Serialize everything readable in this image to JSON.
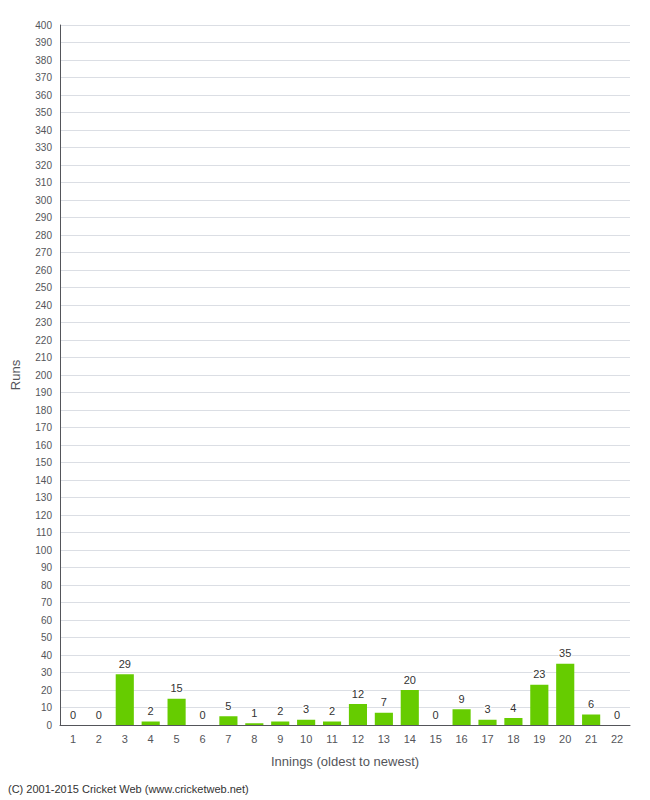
{
  "chart_data": {
    "type": "bar",
    "xlabel": "Innings (oldest to newest)",
    "ylabel": "Runs",
    "categories": [
      "1",
      "2",
      "3",
      "4",
      "5",
      "6",
      "7",
      "8",
      "9",
      "10",
      "11",
      "12",
      "13",
      "14",
      "15",
      "16",
      "17",
      "18",
      "19",
      "20",
      "21",
      "22"
    ],
    "values": [
      0,
      0,
      29,
      2,
      15,
      0,
      5,
      1,
      2,
      3,
      2,
      12,
      7,
      20,
      0,
      9,
      3,
      4,
      23,
      35,
      6,
      0
    ],
    "color": "#66cc00",
    "ylim": [
      0,
      400
    ],
    "yticks": [
      0,
      10,
      20,
      30,
      40,
      50,
      60,
      70,
      80,
      90,
      100,
      110,
      120,
      130,
      140,
      150,
      160,
      170,
      180,
      190,
      200,
      210,
      220,
      230,
      240,
      250,
      260,
      270,
      280,
      290,
      300,
      310,
      320,
      330,
      340,
      350,
      360,
      370,
      380,
      390,
      400
    ],
    "grid": true,
    "data_labels": true,
    "annotations": [
      "(C) 2001-2015 Cricket Web (www.cricketweb.net)"
    ]
  }
}
